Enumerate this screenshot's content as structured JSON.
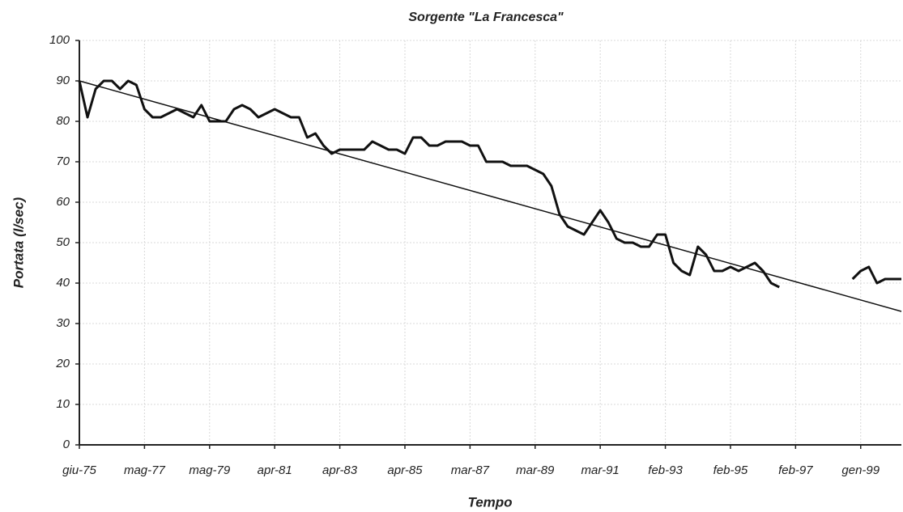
{
  "chart_data": {
    "type": "line",
    "title": "Sorgente \"La Francesca\"",
    "xlabel": "Tempo",
    "ylabel": "Portata (l/sec)",
    "categories": [
      "giu-75",
      null,
      null,
      null,
      null,
      null,
      null,
      null,
      "mag-77",
      null,
      null,
      null,
      null,
      null,
      null,
      null,
      "mag-79",
      null,
      null,
      null,
      null,
      null,
      null,
      null,
      "apr-81",
      null,
      null,
      null,
      null,
      null,
      null,
      null,
      "apr-83",
      null,
      null,
      null,
      null,
      null,
      null,
      null,
      "apr-85",
      null,
      null,
      null,
      null,
      null,
      null,
      null,
      "mar-87",
      null,
      null,
      null,
      null,
      null,
      null,
      null,
      "mar-89",
      null,
      null,
      null,
      null,
      null,
      null,
      null,
      "mar-91",
      null,
      null,
      null,
      null,
      null,
      null,
      null,
      "feb-93",
      null,
      null,
      null,
      null,
      null,
      null,
      null,
      "feb-95",
      null,
      null,
      null,
      null,
      null,
      null,
      null,
      "feb-97",
      null,
      null,
      null,
      null,
      null,
      null,
      null,
      "gen-99",
      null,
      null,
      null,
      null,
      null
    ],
    "series": [
      {
        "color": "#111111",
        "values": [
          90,
          81,
          88,
          90,
          90,
          88,
          90,
          89,
          83,
          81,
          81,
          82,
          83,
          82,
          81,
          84,
          80,
          80,
          80,
          83,
          84,
          83,
          81,
          82,
          83,
          82,
          81,
          81,
          76,
          77,
          74,
          72,
          73,
          73,
          73,
          73,
          75,
          74,
          73,
          73,
          72,
          76,
          76,
          74,
          74,
          75,
          75,
          75,
          74,
          74,
          70,
          70,
          70,
          69,
          69,
          69,
          68,
          67,
          64,
          57,
          54,
          53,
          52,
          55,
          58,
          55,
          51,
          50,
          50,
          49,
          49,
          52,
          52,
          45,
          43,
          42,
          49,
          47,
          43,
          43,
          44,
          43,
          44,
          45,
          43,
          40,
          39,
          null,
          null,
          null,
          null,
          null,
          null,
          null,
          null,
          41,
          43,
          44,
          40,
          41,
          41,
          41
        ]
      }
    ],
    "trendline": {
      "color": "#111111",
      "values": [
        90,
        33
      ]
    },
    "ylim": [
      0,
      100
    ],
    "yticks": [
      0,
      10,
      20,
      30,
      40,
      50,
      60,
      70,
      80,
      90,
      100
    ],
    "grid": true
  }
}
